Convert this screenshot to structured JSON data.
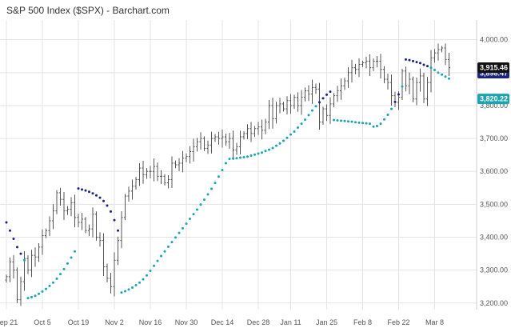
{
  "chart_data": {
    "type": "ohlc",
    "title": "S&P 500 Index ($SPX) - Barchart.com",
    "y_ticks": [
      "4,000.00",
      "3,900.00",
      "3,800.00",
      "3,700.00",
      "3,600.00",
      "3,500.00",
      "3,400.00",
      "3,300.00",
      "3,200.00"
    ],
    "y_tick_values": [
      4000,
      3900,
      3800,
      3700,
      3600,
      3500,
      3400,
      3300,
      3200
    ],
    "ylim": [
      3180,
      4060
    ],
    "x_tick_labels": [
      "Sep 21",
      "Oct 5",
      "Oct 19",
      "Nov 2",
      "Nov 16",
      "Nov 30",
      "Dec 14",
      "Dec 28",
      "Jan 11",
      "Jan 25",
      "Feb 8",
      "Feb 22",
      "Mar 8"
    ],
    "x_tick_indices": [
      0,
      10,
      20,
      30,
      40,
      50,
      60,
      70,
      79,
      89,
      99,
      109,
      119
    ],
    "grid": true,
    "colors": {
      "price_bar": "#555555",
      "sar_above": "#1a237e",
      "sar_below": "#1aa4b0",
      "grid": "#e3e3e3",
      "last_price_badge": "#111111",
      "sar_above_badge": "#1a237e",
      "sar_below_badge": "#1aa4b0"
    },
    "last_price_label": "3,915.46",
    "sar_above_label": "3,898.47",
    "sar_below_label": "3,820.22",
    "last_price_value": 3915.46,
    "sar_above_value": 3898.47,
    "sar_below_value": 3820.22,
    "series": [
      {
        "name": "Price",
        "type": "ohlc",
        "close": [
          3280,
          3325,
          3300,
          3210,
          3265,
          3335,
          3300,
          3345,
          3340,
          3370,
          3405,
          3420,
          3450,
          3480,
          3535,
          3515,
          3480,
          3485,
          3505,
          3460,
          3445,
          3455,
          3420,
          3425,
          3470,
          3400,
          3390,
          3310,
          3275,
          3250,
          3330,
          3390,
          3460,
          3525,
          3540,
          3555,
          3575,
          3610,
          3590,
          3600,
          3600,
          3615,
          3585,
          3585,
          3565,
          3575,
          3625,
          3620,
          3625,
          3640,
          3645,
          3660,
          3675,
          3690,
          3700,
          3670,
          3680,
          3700,
          3705,
          3700,
          3705,
          3690,
          3700,
          3665,
          3675,
          3705,
          3715,
          3730,
          3715,
          3730,
          3735,
          3725,
          3750,
          3800,
          3760,
          3800,
          3805,
          3790,
          3815,
          3800,
          3825,
          3800,
          3825,
          3845,
          3835,
          3855,
          3850,
          3750,
          3790,
          3770,
          3805,
          3830,
          3845,
          3860,
          3875,
          3900,
          3915,
          3910,
          3925,
          3930,
          3935,
          3915,
          3935,
          3935,
          3910,
          3880,
          3870,
          3830,
          3810,
          3825,
          3905,
          3860,
          3880,
          3820,
          3870,
          3890,
          3820,
          3870,
          3945,
          3960,
          3970,
          3975,
          3940,
          3915
        ]
      },
      {
        "name": "SAR",
        "type": "dots",
        "values": [
          3445,
          3420,
          3395,
          3370,
          3350,
          3330,
          3215,
          3218,
          3222,
          3228,
          3235,
          3243,
          3252,
          3262,
          3274,
          3288,
          3303,
          3320,
          3338,
          3357,
          3548,
          3545,
          3542,
          3538,
          3533,
          3527,
          3520,
          3510,
          3496,
          3478,
          3452,
          3420,
          3232,
          3236,
          3241,
          3247,
          3254,
          3262,
          3272,
          3284,
          3298,
          3313,
          3328,
          3343,
          3357,
          3371,
          3385,
          3399,
          3413,
          3427,
          3441,
          3456,
          3470,
          3484,
          3499,
          3514,
          3530,
          3547,
          3565,
          3584,
          3604,
          3625,
          3638,
          3639,
          3640,
          3642,
          3643,
          3645,
          3648,
          3651,
          3654,
          3657,
          3662,
          3666,
          3671,
          3678,
          3685,
          3693,
          3702,
          3712,
          3721,
          3733,
          3745,
          3757,
          3771,
          3785,
          3798,
          3810,
          3822,
          3833,
          3842,
          3756,
          3755,
          3754,
          3753,
          3752,
          3751,
          3749,
          3748,
          3747,
          3746,
          3745,
          3736,
          3738,
          3745,
          3758,
          3772,
          3790,
          3811,
          3834,
          3858,
          3940,
          3938,
          3935,
          3932,
          3929,
          3924,
          3920,
          3915,
          3908,
          3900,
          3894,
          3888,
          3882
        ]
      }
    ]
  }
}
